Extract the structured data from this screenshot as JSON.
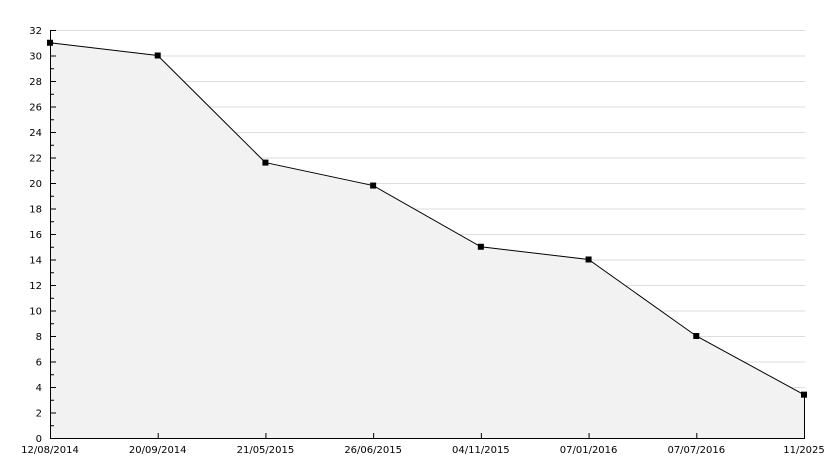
{
  "chart_data": {
    "type": "area",
    "categories": [
      "12/08/2014",
      "20/09/2014",
      "21/05/2015",
      "26/06/2015",
      "04/11/2015",
      "07/01/2016",
      "07/07/2016",
      "11/2025"
    ],
    "values": [
      31,
      30,
      21.6,
      19.8,
      15,
      14,
      8,
      3.4
    ],
    "ylim": [
      0,
      32
    ],
    "yticks": [
      0,
      2,
      4,
      6,
      8,
      10,
      12,
      14,
      16,
      18,
      20,
      22,
      24,
      26,
      28,
      30,
      32
    ],
    "grid": true,
    "colors": {
      "line": "#000000",
      "fill": "#f2f2f2",
      "grid": "#dddddd"
    }
  }
}
